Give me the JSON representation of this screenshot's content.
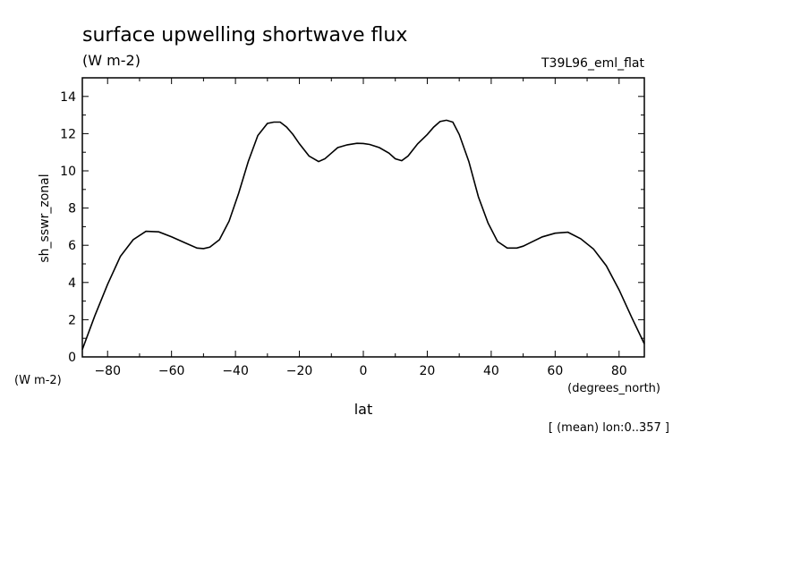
{
  "chart_data": {
    "type": "line",
    "title": "surface upwelling shortwave flux",
    "subtitle": "(W m-2)",
    "run_label": "T39L96_eml_flat",
    "ylabel": "sh_sswr_zonal",
    "yunits": "(W m-2)",
    "xlabel": "lat",
    "xunits": "(degrees_north)",
    "footnote": "[ (mean) lon:0..357 ]",
    "xlim": [
      -87.9,
      87.9
    ],
    "ylim": [
      0,
      15
    ],
    "xticks": [
      -80,
      -60,
      -40,
      -20,
      0,
      20,
      40,
      60,
      80
    ],
    "yticks": [
      0,
      2,
      4,
      6,
      8,
      10,
      12,
      14
    ],
    "series": [
      {
        "color": "#000000",
        "x": [
          -87.9,
          -84,
          -80,
          -76,
          -72,
          -68,
          -64,
          -60,
          -56,
          -52,
          -50,
          -48,
          -45,
          -42,
          -39,
          -36,
          -33,
          -30,
          -28,
          -26,
          -24,
          -22,
          -20,
          -17,
          -14,
          -12,
          -10,
          -8,
          -5,
          -2,
          0,
          2,
          5,
          8,
          10,
          12,
          14,
          17,
          20,
          22,
          24,
          26,
          28,
          30,
          33,
          36,
          39,
          42,
          45,
          48,
          50,
          52,
          56,
          60,
          64,
          68,
          72,
          76,
          80,
          84,
          87.9
        ],
        "y": [
          0.4,
          2.2,
          3.9,
          5.4,
          6.3,
          6.75,
          6.72,
          6.45,
          6.15,
          5.85,
          5.82,
          5.9,
          6.3,
          7.3,
          8.8,
          10.5,
          11.9,
          12.55,
          12.62,
          12.62,
          12.35,
          11.95,
          11.45,
          10.8,
          10.5,
          10.65,
          10.95,
          11.25,
          11.4,
          11.48,
          11.47,
          11.42,
          11.25,
          10.95,
          10.65,
          10.55,
          10.8,
          11.45,
          11.95,
          12.35,
          12.65,
          12.72,
          12.62,
          11.95,
          10.5,
          8.6,
          7.2,
          6.2,
          5.85,
          5.85,
          5.95,
          6.12,
          6.45,
          6.65,
          6.7,
          6.35,
          5.8,
          4.9,
          3.6,
          2.1,
          0.7
        ]
      }
    ]
  }
}
